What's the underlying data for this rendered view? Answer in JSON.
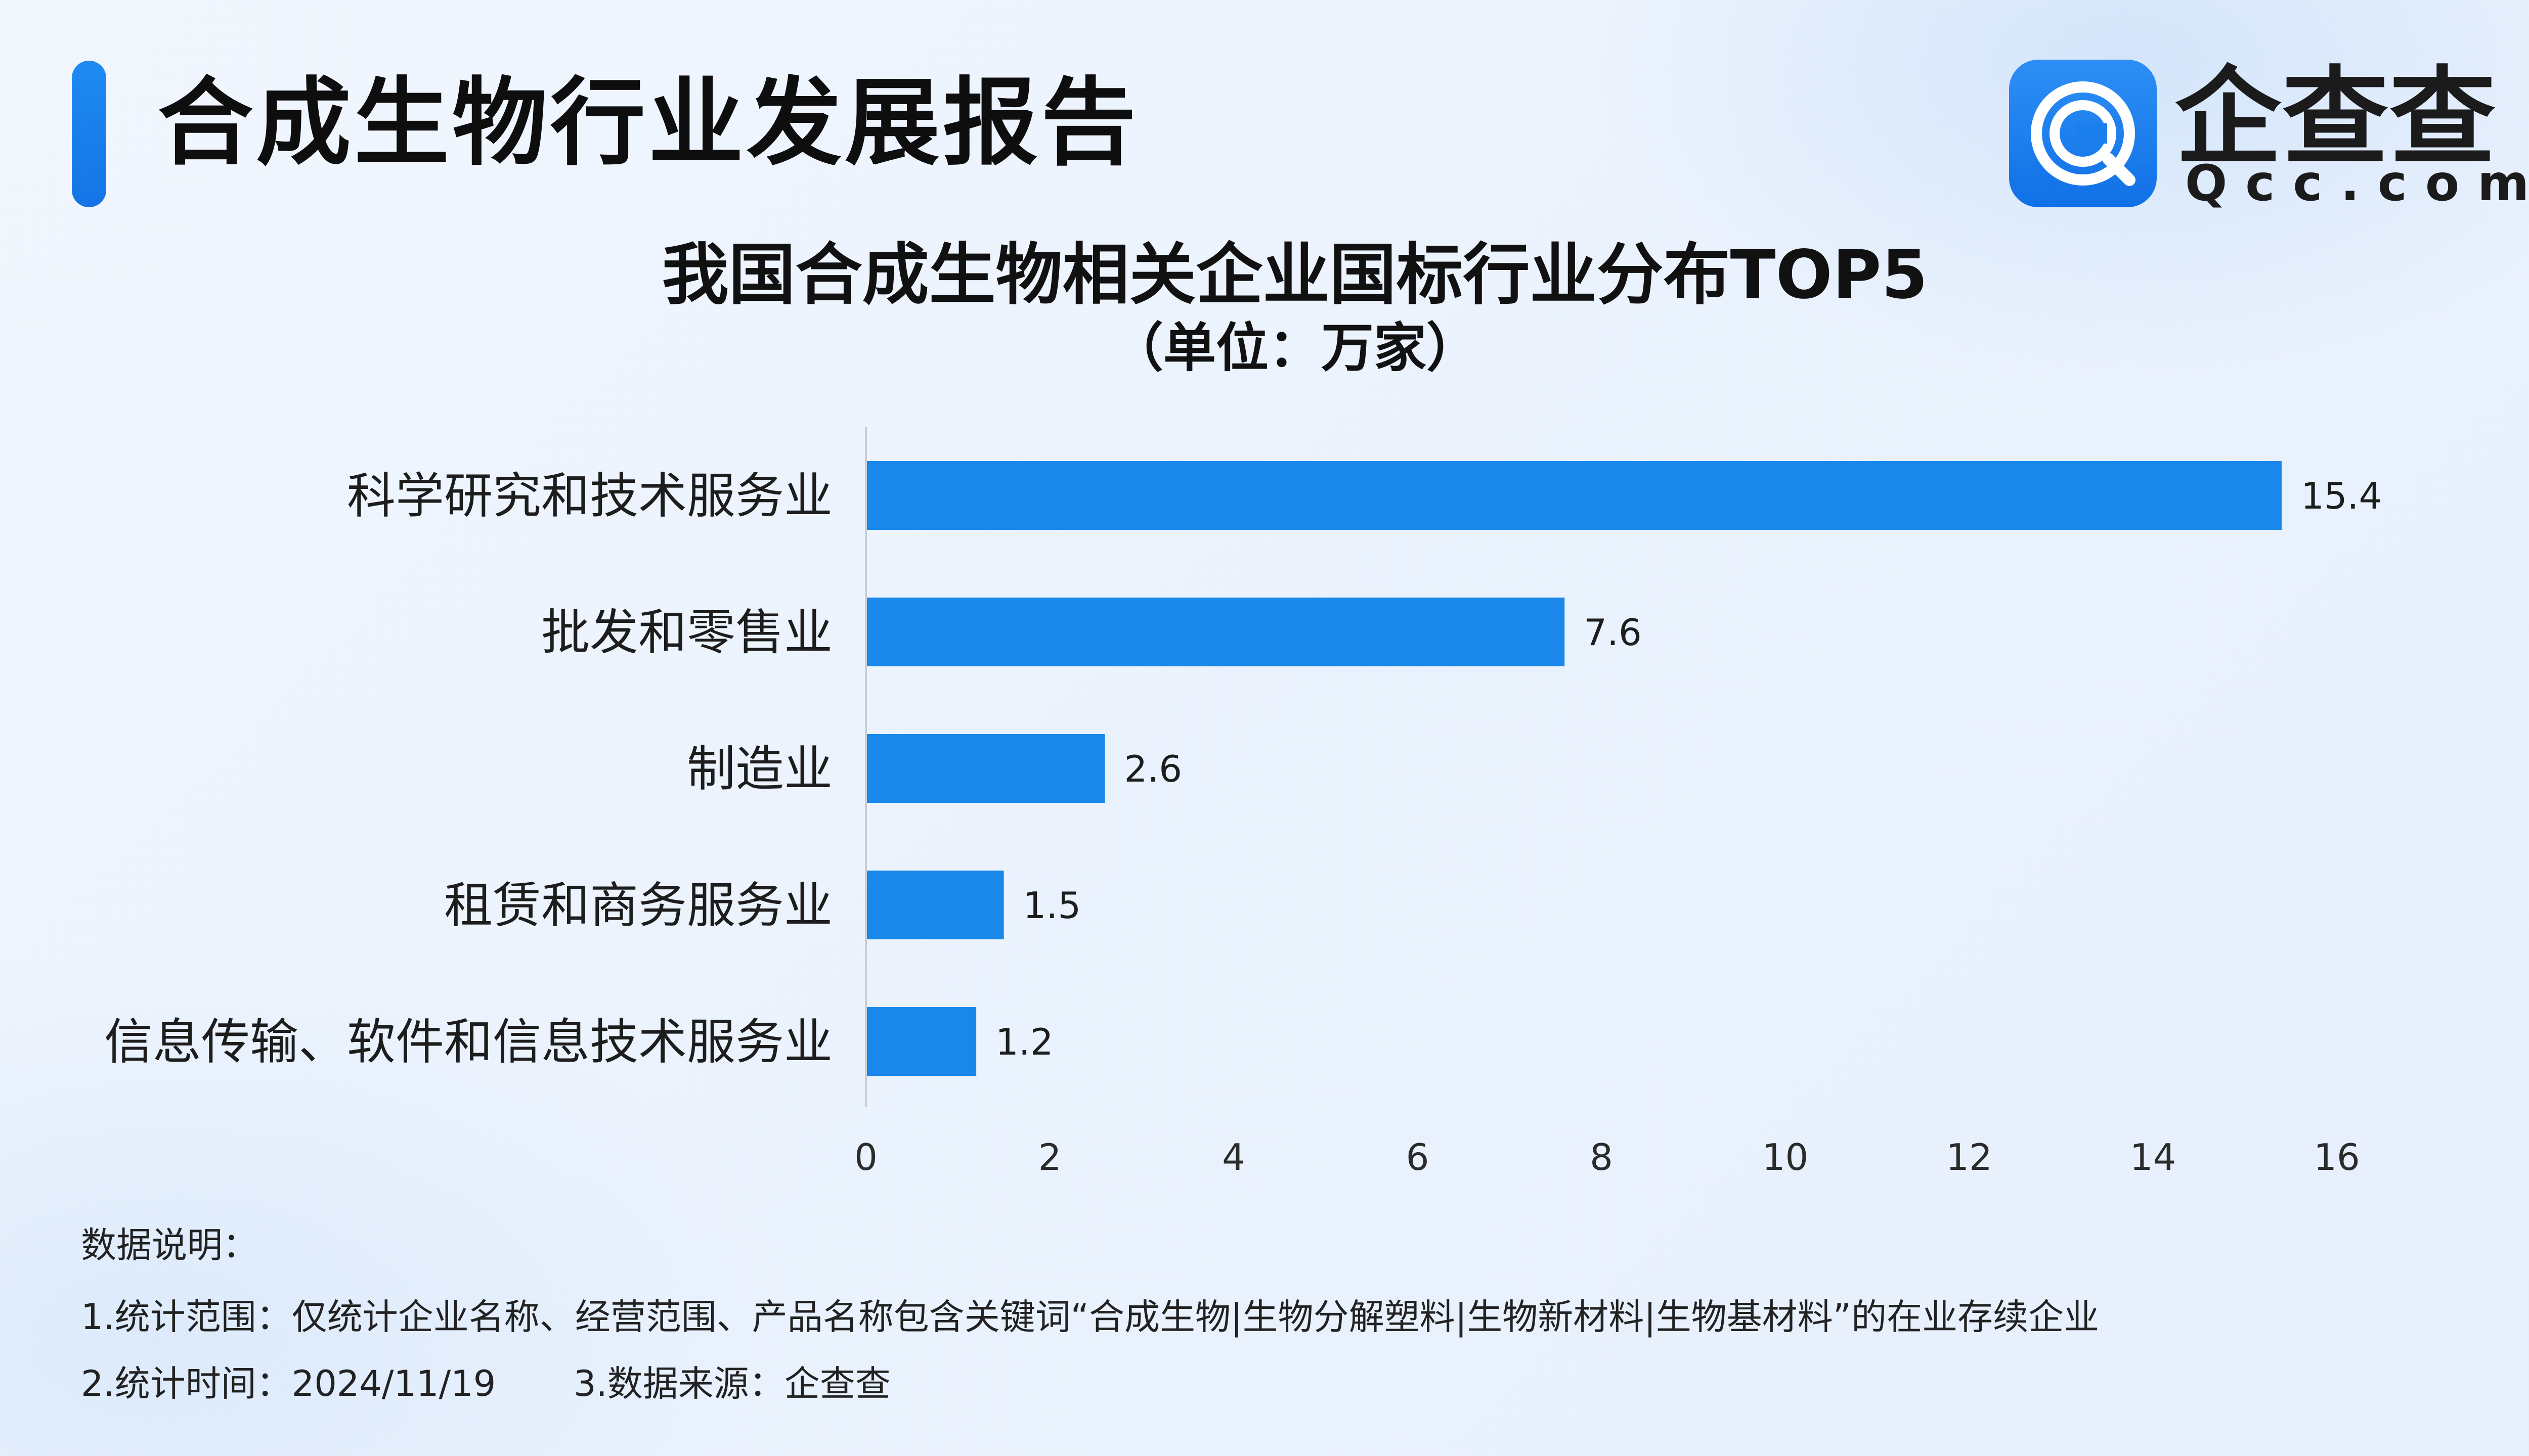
{
  "header": {
    "title": "合成生物行业发展报告",
    "logo_name": "企查查",
    "logo_domain": "Qcc.com",
    "accent_color": "#1a7fec"
  },
  "chart_data": {
    "type": "bar",
    "orientation": "horizontal",
    "title": "我国合成生物相关企业国标行业分布TOP5",
    "subtitle": "（单位：万家）",
    "categories": [
      "科学研究和技术服务业",
      "批发和零售业",
      "制造业",
      "租赁和商务服务业",
      "信息传输、软件和信息技术服务业"
    ],
    "values": [
      15.4,
      7.6,
      2.6,
      1.5,
      1.2
    ],
    "value_labels": [
      "15.4",
      "7.6",
      "2.6",
      "1.5",
      "1.2"
    ],
    "xlim": [
      0,
      16
    ],
    "x_ticks": [
      "0",
      "2",
      "4",
      "6",
      "8",
      "10",
      "12",
      "14",
      "16"
    ],
    "bar_color": "#1a88ea",
    "grid": false,
    "legend": "none"
  },
  "notes": {
    "heading": "数据说明：",
    "line1": "1.统计范围：仅统计企业名称、经营范围、产品名称包含关键词“合成生物|生物分解塑料|生物新材料|生物基材料”的在业存续企业",
    "line2": "2.统计时间：2024/11/19",
    "line3": "3.数据来源：企查查"
  }
}
